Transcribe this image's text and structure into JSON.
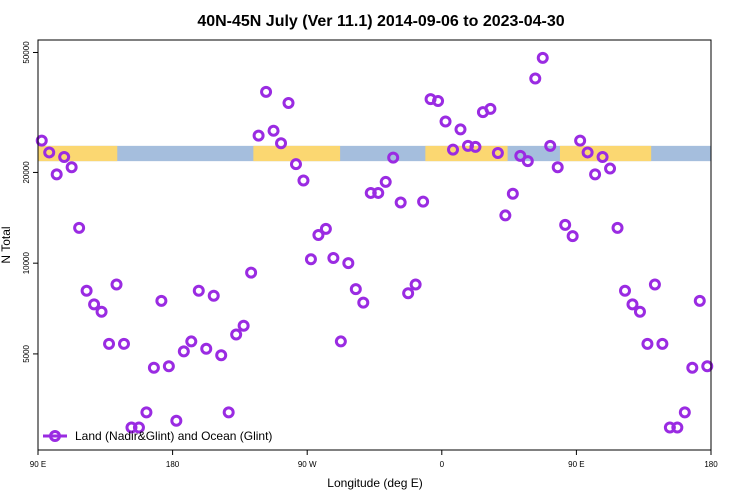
{
  "chart_data": {
    "type": "scatter",
    "title": "40N-45N July (Ver 11.1)   2014-09-06 to 2023-04-30",
    "xlabel": "Longitude (deg E)",
    "ylabel": "N Total",
    "x_ticks": [
      {
        "value": 90,
        "label": "90 E"
      },
      {
        "value": 180,
        "label": "180"
      },
      {
        "value": 270,
        "label": "90 W"
      },
      {
        "value": 360,
        "label": "0"
      },
      {
        "value": 450,
        "label": "90 E"
      },
      {
        "value": 540,
        "label": "180"
      }
    ],
    "y_scale": "log",
    "y_ticks": [
      {
        "value": 5000,
        "label": "5000"
      },
      {
        "value": 10000,
        "label": "10000"
      },
      {
        "value": 20000,
        "label": "20000"
      },
      {
        "value": 50000,
        "label": "50000"
      }
    ],
    "xlim": [
      90,
      540
    ],
    "ylim": [
      2400,
      55000
    ],
    "legend": {
      "position": "bottom-left",
      "entries": [
        {
          "label": "Land (Nadir&Glint) and Ocean (Glint)",
          "color": "#9a2be2"
        }
      ]
    },
    "surface_band": {
      "y_range": [
        21800,
        24500
      ],
      "ocean_color": "#a5bedd",
      "land_color": "#fbd771",
      "land_segments": [
        [
          90,
          143
        ],
        [
          234,
          292
        ],
        [
          349,
          404
        ],
        [
          439,
          500
        ]
      ]
    },
    "series": [
      {
        "name": "Land (Nadir&Glint) and Ocean (Glint)",
        "color": "#9a2be2",
        "points": [
          {
            "x": 92.5,
            "y": 25500
          },
          {
            "x": 97.5,
            "y": 23300
          },
          {
            "x": 102.5,
            "y": 19700
          },
          {
            "x": 107.5,
            "y": 22500
          },
          {
            "x": 112.5,
            "y": 20800
          },
          {
            "x": 117.5,
            "y": 13100
          },
          {
            "x": 122.5,
            "y": 8100
          },
          {
            "x": 127.5,
            "y": 7300
          },
          {
            "x": 132.5,
            "y": 6900
          },
          {
            "x": 137.5,
            "y": 5400
          },
          {
            "x": 142.5,
            "y": 8500
          },
          {
            "x": 147.5,
            "y": 5400
          },
          {
            "x": 152.5,
            "y": 2850
          },
          {
            "x": 157.5,
            "y": 2850
          },
          {
            "x": 162.5,
            "y": 3200
          },
          {
            "x": 167.5,
            "y": 4500
          },
          {
            "x": 172.5,
            "y": 7500
          },
          {
            "x": 177.5,
            "y": 4550
          },
          {
            "x": 182.5,
            "y": 3000
          },
          {
            "x": 187.5,
            "y": 5100
          },
          {
            "x": 192.5,
            "y": 5500
          },
          {
            "x": 197.5,
            "y": 8100
          },
          {
            "x": 202.5,
            "y": 5200
          },
          {
            "x": 207.5,
            "y": 7800
          },
          {
            "x": 212.5,
            "y": 4950
          },
          {
            "x": 217.5,
            "y": 3200
          },
          {
            "x": 222.5,
            "y": 5800
          },
          {
            "x": 227.5,
            "y": 6200
          },
          {
            "x": 232.5,
            "y": 9300
          },
          {
            "x": 237.5,
            "y": 26500
          },
          {
            "x": 242.5,
            "y": 37000
          },
          {
            "x": 247.5,
            "y": 27500
          },
          {
            "x": 252.5,
            "y": 25000
          },
          {
            "x": 257.5,
            "y": 34000
          },
          {
            "x": 262.5,
            "y": 21300
          },
          {
            "x": 267.5,
            "y": 18800
          },
          {
            "x": 272.5,
            "y": 10300
          },
          {
            "x": 277.5,
            "y": 12400
          },
          {
            "x": 282.5,
            "y": 13000
          },
          {
            "x": 287.5,
            "y": 10400
          },
          {
            "x": 292.5,
            "y": 5500
          },
          {
            "x": 297.5,
            "y": 10000
          },
          {
            "x": 302.5,
            "y": 8200
          },
          {
            "x": 307.5,
            "y": 7400
          },
          {
            "x": 312.5,
            "y": 17100
          },
          {
            "x": 317.5,
            "y": 17100
          },
          {
            "x": 322.5,
            "y": 18600
          },
          {
            "x": 327.5,
            "y": 22400
          },
          {
            "x": 332.5,
            "y": 15900
          },
          {
            "x": 337.5,
            "y": 7950
          },
          {
            "x": 342.5,
            "y": 8500
          },
          {
            "x": 347.5,
            "y": 16000
          },
          {
            "x": 352.5,
            "y": 35000
          },
          {
            "x": 357.5,
            "y": 34500
          },
          {
            "x": 362.5,
            "y": 29500
          },
          {
            "x": 367.5,
            "y": 23800
          },
          {
            "x": 372.5,
            "y": 27800
          },
          {
            "x": 377.5,
            "y": 24500
          },
          {
            "x": 382.5,
            "y": 24300
          },
          {
            "x": 387.5,
            "y": 31700
          },
          {
            "x": 392.5,
            "y": 32500
          },
          {
            "x": 397.5,
            "y": 23200
          },
          {
            "x": 402.5,
            "y": 14400
          },
          {
            "x": 407.5,
            "y": 17000
          },
          {
            "x": 412.5,
            "y": 22700
          },
          {
            "x": 417.5,
            "y": 21800
          },
          {
            "x": 422.5,
            "y": 41000
          },
          {
            "x": 427.5,
            "y": 48000
          },
          {
            "x": 432.5,
            "y": 24500
          },
          {
            "x": 437.5,
            "y": 20800
          },
          {
            "x": 442.5,
            "y": 13400
          },
          {
            "x": 447.5,
            "y": 12300
          },
          {
            "x": 452.5,
            "y": 25500
          },
          {
            "x": 457.5,
            "y": 23300
          },
          {
            "x": 462.5,
            "y": 19700
          },
          {
            "x": 467.5,
            "y": 22500
          },
          {
            "x": 472.5,
            "y": 20600
          },
          {
            "x": 477.5,
            "y": 13100
          },
          {
            "x": 482.5,
            "y": 8100
          },
          {
            "x": 487.5,
            "y": 7300
          },
          {
            "x": 492.5,
            "y": 6900
          },
          {
            "x": 497.5,
            "y": 5400
          },
          {
            "x": 502.5,
            "y": 8500
          },
          {
            "x": 507.5,
            "y": 5400
          },
          {
            "x": 512.5,
            "y": 2850
          },
          {
            "x": 517.5,
            "y": 2850
          },
          {
            "x": 522.5,
            "y": 3200
          },
          {
            "x": 527.5,
            "y": 4500
          },
          {
            "x": 532.5,
            "y": 7500
          },
          {
            "x": 537.5,
            "y": 4550
          }
        ]
      }
    ]
  }
}
